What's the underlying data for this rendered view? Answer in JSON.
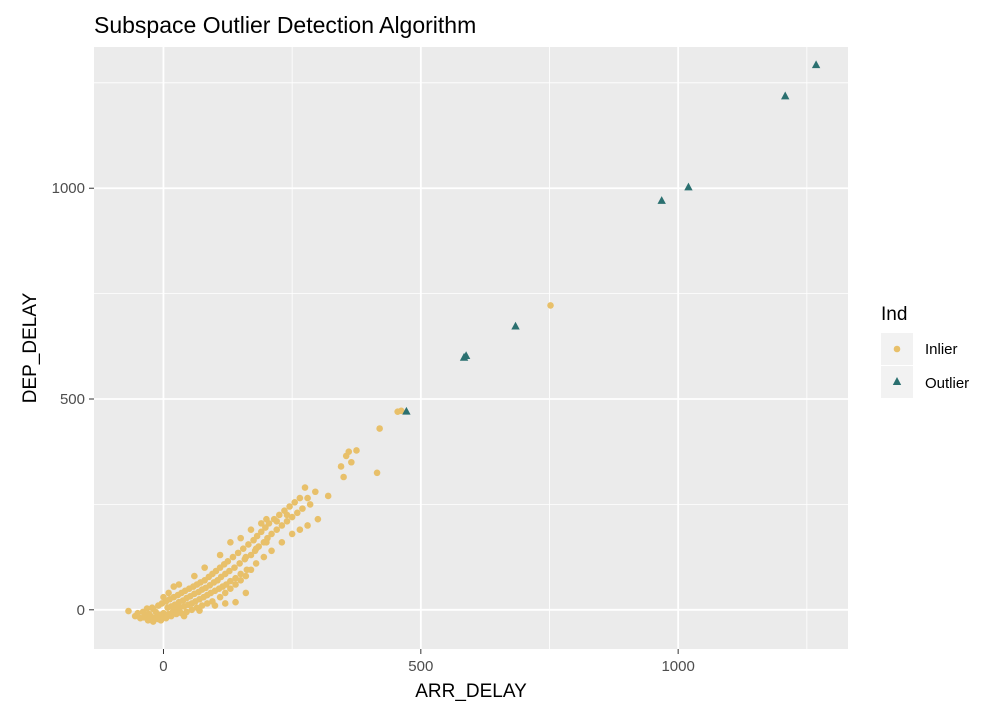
{
  "chart_data": {
    "type": "scatter",
    "title": "Subspace Outlier Detection Algorithm",
    "xlabel": "ARR_DELAY",
    "ylabel": "DEP_DELAY",
    "xlim": [
      -135,
      1330
    ],
    "ylim": [
      -93,
      1335
    ],
    "x_major_ticks": [
      0,
      500,
      1000
    ],
    "y_major_ticks": [
      0,
      500,
      1000
    ],
    "x_minor_ticks": [
      250,
      750,
      1250
    ],
    "y_minor_ticks": [
      250,
      750,
      1250
    ],
    "x_tick_labels": [
      "0",
      "500",
      "1000"
    ],
    "y_tick_labels": [
      "0",
      "500",
      "1000"
    ],
    "grid": true,
    "legend": {
      "title": "Ind",
      "placement": "right"
    },
    "series": [
      {
        "name": "Inlier",
        "color": "#e8c06a",
        "marker": "circle",
        "points": [
          [
            -68,
            -3
          ],
          [
            -55,
            -15
          ],
          [
            -50,
            -8
          ],
          [
            -45,
            -20
          ],
          [
            -40,
            -5
          ],
          [
            -38,
            -18
          ],
          [
            -35,
            -12
          ],
          [
            -32,
            3
          ],
          [
            -30,
            -25
          ],
          [
            -28,
            -10
          ],
          [
            -25,
            -15
          ],
          [
            -22,
            5
          ],
          [
            -20,
            -28
          ],
          [
            -18,
            -20
          ],
          [
            -15,
            -5
          ],
          [
            -12,
            -18
          ],
          [
            -10,
            10
          ],
          [
            -8,
            -12
          ],
          [
            -5,
            -25
          ],
          [
            -3,
            15
          ],
          [
            0,
            -8
          ],
          [
            2,
            -18
          ],
          [
            5,
            20
          ],
          [
            8,
            5
          ],
          [
            10,
            -10
          ],
          [
            12,
            25
          ],
          [
            15,
            8
          ],
          [
            18,
            -5
          ],
          [
            20,
            30
          ],
          [
            22,
            12
          ],
          [
            25,
            0
          ],
          [
            28,
            35
          ],
          [
            30,
            18
          ],
          [
            32,
            5
          ],
          [
            35,
            40
          ],
          [
            38,
            22
          ],
          [
            40,
            8
          ],
          [
            42,
            45
          ],
          [
            45,
            28
          ],
          [
            48,
            12
          ],
          [
            50,
            50
          ],
          [
            52,
            32
          ],
          [
            55,
            15
          ],
          [
            58,
            55
          ],
          [
            60,
            38
          ],
          [
            62,
            20
          ],
          [
            65,
            60
          ],
          [
            68,
            42
          ],
          [
            70,
            25
          ],
          [
            72,
            65
          ],
          [
            75,
            48
          ],
          [
            78,
            30
          ],
          [
            80,
            70
          ],
          [
            82,
            52
          ],
          [
            85,
            35
          ],
          [
            88,
            78
          ],
          [
            90,
            58
          ],
          [
            92,
            40
          ],
          [
            95,
            85
          ],
          [
            98,
            65
          ],
          [
            100,
            45
          ],
          [
            102,
            92
          ],
          [
            105,
            70
          ],
          [
            108,
            50
          ],
          [
            110,
            100
          ],
          [
            112,
            78
          ],
          [
            115,
            55
          ],
          [
            118,
            108
          ],
          [
            120,
            85
          ],
          [
            122,
            60
          ],
          [
            125,
            115
          ],
          [
            128,
            92
          ],
          [
            130,
            68
          ],
          [
            135,
            125
          ],
          [
            138,
            100
          ],
          [
            140,
            75
          ],
          [
            145,
            135
          ],
          [
            148,
            110
          ],
          [
            150,
            85
          ],
          [
            155,
            145
          ],
          [
            158,
            120
          ],
          [
            162,
            95
          ],
          [
            165,
            155
          ],
          [
            170,
            130
          ],
          [
            175,
            165
          ],
          [
            178,
            140
          ],
          [
            182,
            175
          ],
          [
            185,
            150
          ],
          [
            190,
            185
          ],
          [
            195,
            160
          ],
          [
            198,
            195
          ],
          [
            202,
            170
          ],
          [
            205,
            205
          ],
          [
            210,
            180
          ],
          [
            215,
            215
          ],
          [
            220,
            190
          ],
          [
            225,
            225
          ],
          [
            230,
            200
          ],
          [
            235,
            235
          ],
          [
            240,
            210
          ],
          [
            245,
            245
          ],
          [
            250,
            220
          ],
          [
            255,
            255
          ],
          [
            260,
            230
          ],
          [
            265,
            265
          ],
          [
            270,
            240
          ],
          [
            275,
            290
          ],
          [
            280,
            265
          ],
          [
            285,
            250
          ],
          [
            295,
            280
          ],
          [
            5,
            -20
          ],
          [
            15,
            -15
          ],
          [
            25,
            -10
          ],
          [
            35,
            -8
          ],
          [
            45,
            -5
          ],
          [
            55,
            0
          ],
          [
            65,
            5
          ],
          [
            75,
            10
          ],
          [
            85,
            15
          ],
          [
            95,
            20
          ],
          [
            110,
            30
          ],
          [
            120,
            40
          ],
          [
            130,
            50
          ],
          [
            140,
            60
          ],
          [
            150,
            70
          ],
          [
            160,
            80
          ],
          [
            170,
            95
          ],
          [
            180,
            110
          ],
          [
            195,
            125
          ],
          [
            210,
            140
          ],
          [
            230,
            160
          ],
          [
            250,
            180
          ],
          [
            265,
            190
          ],
          [
            280,
            200
          ],
          [
            300,
            215
          ],
          [
            140,
            18
          ],
          [
            160,
            40
          ],
          [
            120,
            15
          ],
          [
            100,
            10
          ],
          [
            70,
            -2
          ],
          [
            40,
            -15
          ],
          [
            -20,
            2
          ],
          [
            -10,
            -22
          ],
          [
            0,
            30
          ],
          [
            10,
            40
          ],
          [
            20,
            55
          ],
          [
            30,
            60
          ],
          [
            60,
            80
          ],
          [
            80,
            100
          ],
          [
            110,
            130
          ],
          [
            130,
            160
          ],
          [
            150,
            170
          ],
          [
            170,
            190
          ],
          [
            190,
            205
          ],
          [
            200,
            215
          ],
          [
            220,
            210
          ],
          [
            240,
            225
          ],
          [
            200,
            160
          ],
          [
            180,
            145
          ],
          [
            160,
            125
          ],
          [
            320,
            270
          ],
          [
            345,
            340
          ],
          [
            350,
            315
          ],
          [
            355,
            365
          ],
          [
            360,
            375
          ],
          [
            365,
            350
          ],
          [
            375,
            378
          ],
          [
            415,
            325
          ],
          [
            420,
            430
          ],
          [
            455,
            470
          ],
          [
            462,
            472
          ],
          [
            752,
            722
          ]
        ]
      },
      {
        "name": "Outlier",
        "color": "#2b7070",
        "marker": "triangle",
        "points": [
          [
            472,
            470
          ],
          [
            584,
            598
          ],
          [
            588,
            602
          ],
          [
            684,
            672
          ],
          [
            968,
            970
          ],
          [
            1020,
            1002
          ],
          [
            1208,
            1218
          ],
          [
            1268,
            1292
          ]
        ]
      }
    ]
  }
}
